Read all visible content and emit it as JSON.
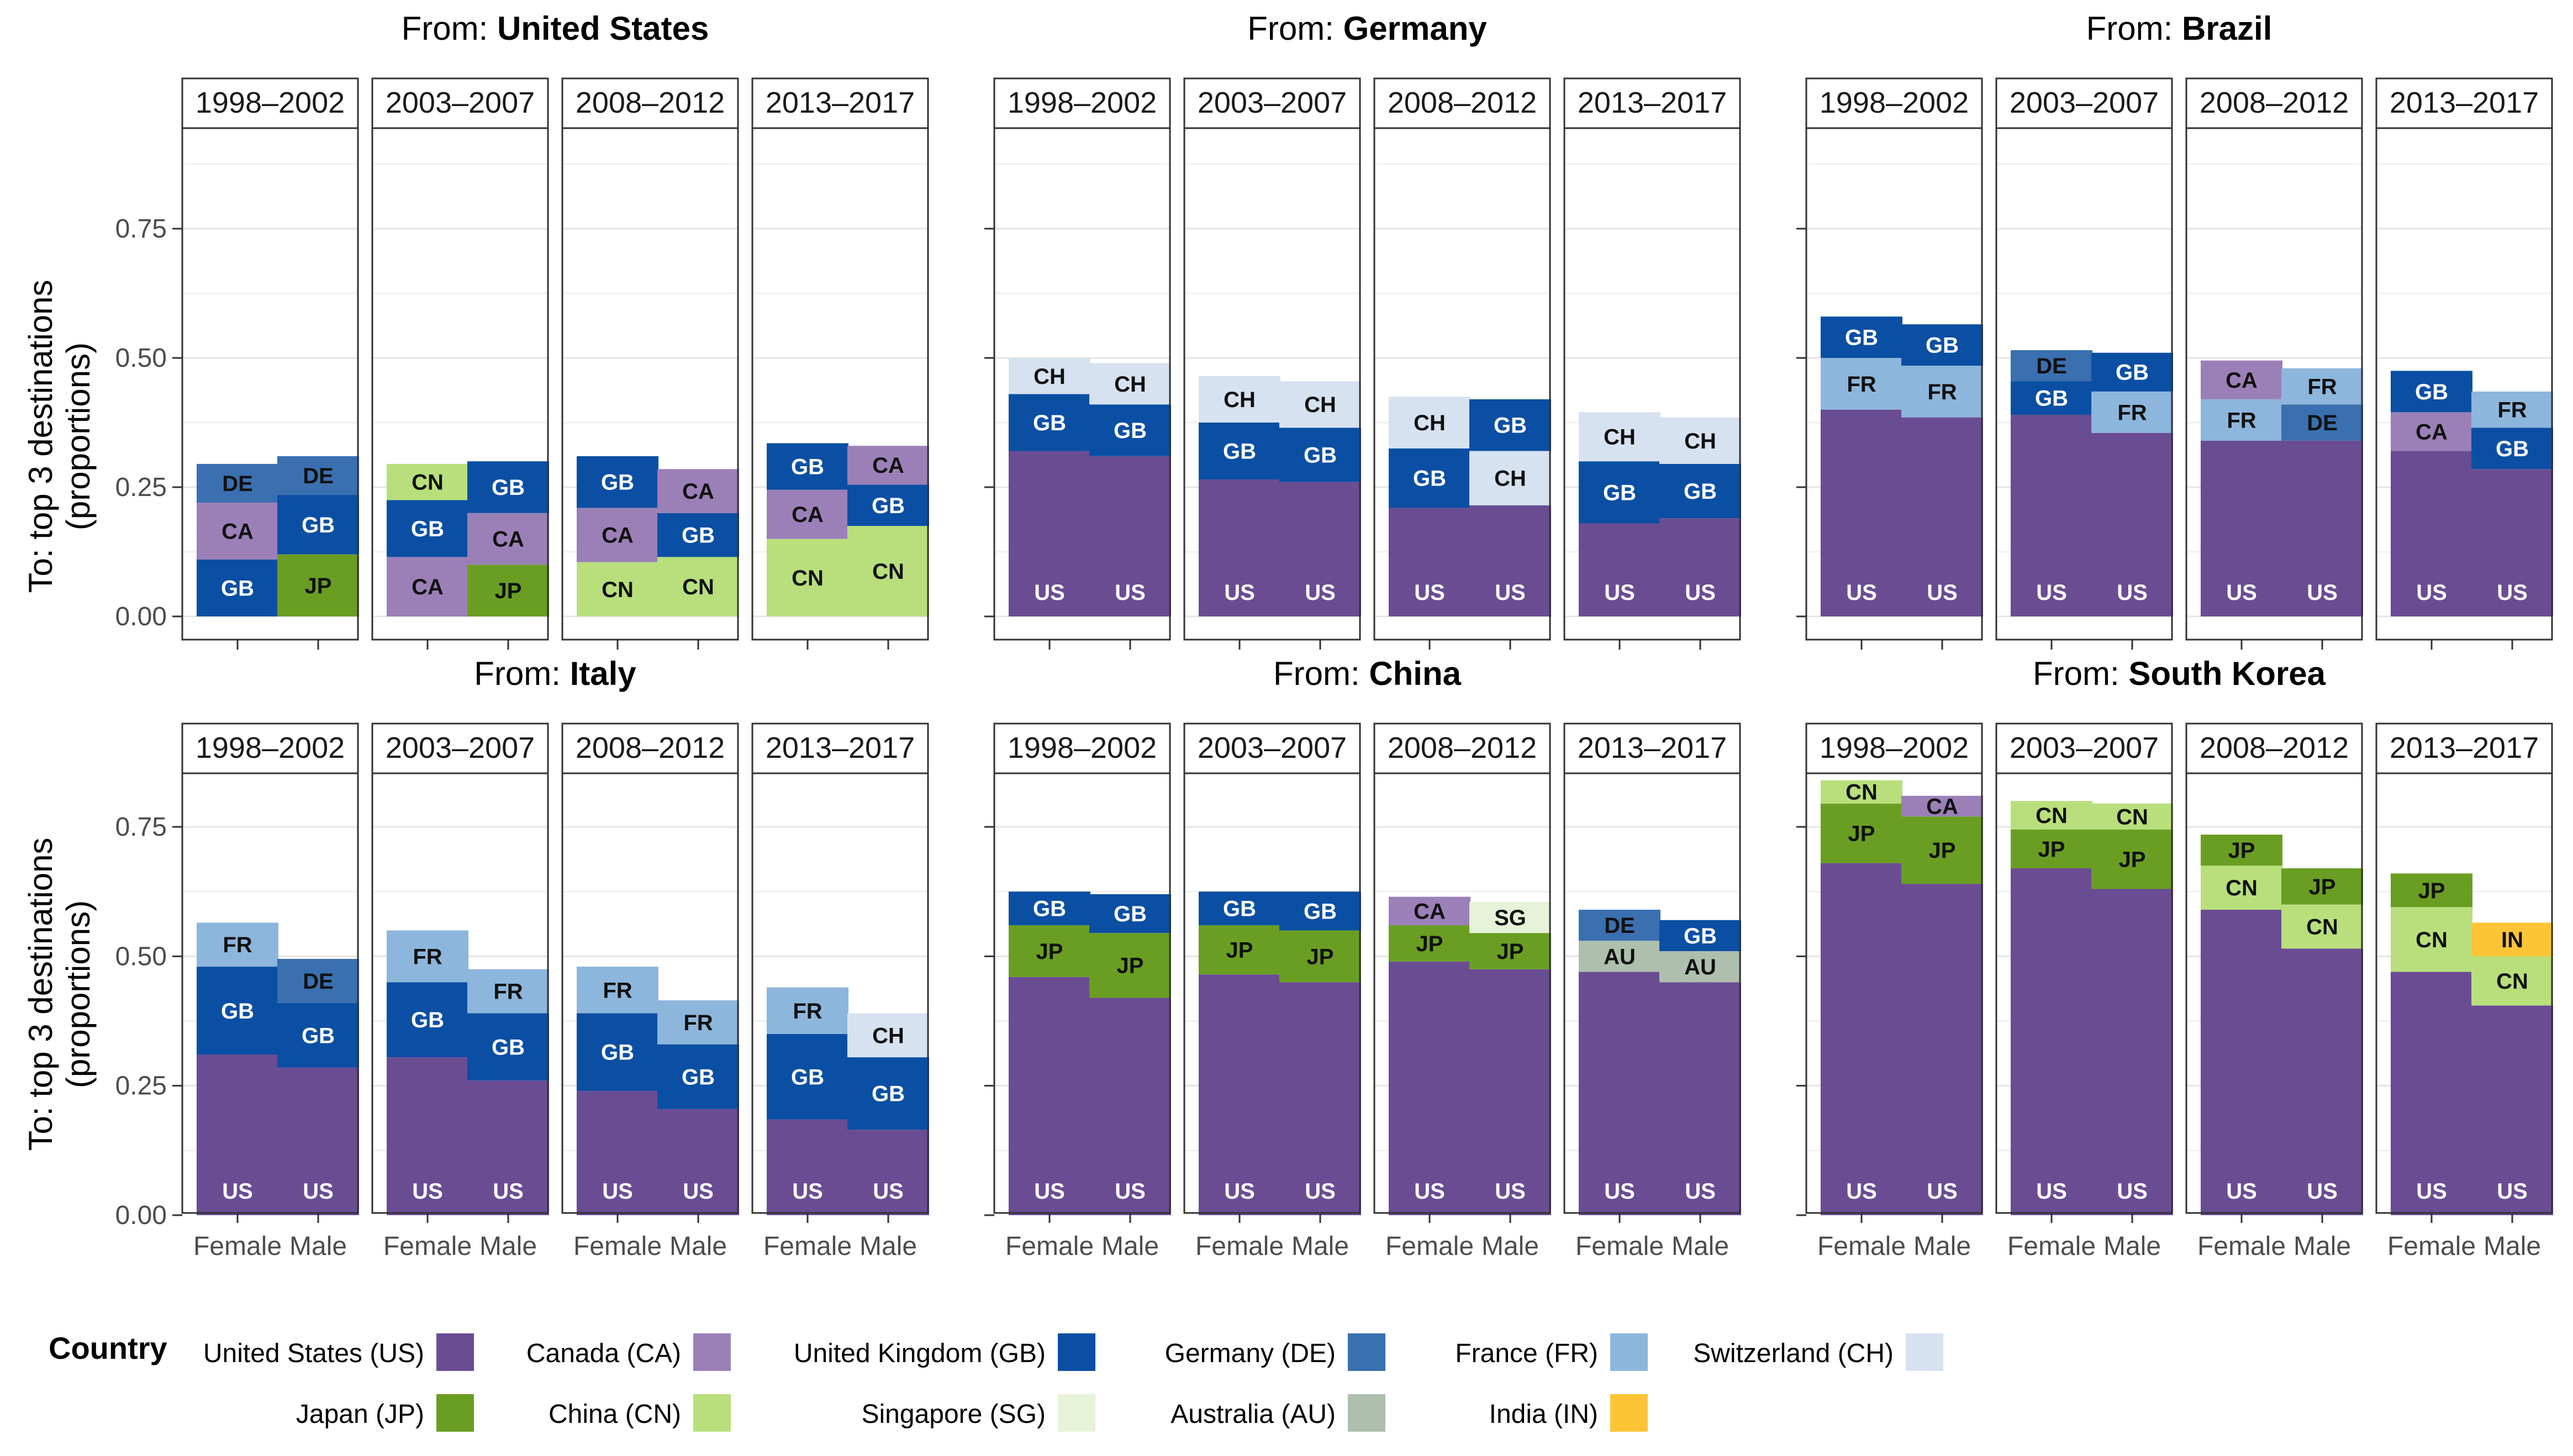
{
  "chart_data": {
    "type": "bar",
    "stacked": true,
    "facet_title_prefix": "From: ",
    "ylabel_line1": "To: top 3 destinations",
    "ylabel_line2": "(proportions)",
    "y_ticks": [
      "0.00",
      "0.25",
      "0.50",
      "0.75"
    ],
    "ylim": [
      0,
      0.95
    ],
    "periods": [
      "1998–2002",
      "2003–2007",
      "2008–2012",
      "2013–2017"
    ],
    "x_categories": [
      "Female",
      "Male"
    ],
    "grid": true,
    "legend_position": "bottom",
    "legend": {
      "title": "Country",
      "items": [
        {
          "code": "US",
          "label": "United States (US)",
          "color": "#6a4c93"
        },
        {
          "code": "CA",
          "label": "Canada (CA)",
          "color": "#9b80b8"
        },
        {
          "code": "GB",
          "label": "United Kingdom (GB)",
          "color": "#0a4fa3"
        },
        {
          "code": "DE",
          "label": "Germany (DE)",
          "color": "#3a6fb0"
        },
        {
          "code": "FR",
          "label": "France (FR)",
          "color": "#8db6dc"
        },
        {
          "code": "CH",
          "label": "Switzerland (CH)",
          "color": "#d7e2f0"
        },
        {
          "code": "JP",
          "label": "Japan (JP)",
          "color": "#6a9e22"
        },
        {
          "code": "CN",
          "label": "China (CN)",
          "color": "#b8df7c"
        },
        {
          "code": "SG",
          "label": "Singapore (SG)",
          "color": "#e6f3d8"
        },
        {
          "code": "AU",
          "label": "Australia (AU)",
          "color": "#aebfae"
        },
        {
          "code": "IN",
          "label": "India (IN)",
          "color": "#fdc536"
        }
      ]
    },
    "dark_label_codes": [
      "CA",
      "DE",
      "CH",
      "FR",
      "CN",
      "SG",
      "AU",
      "IN",
      "JP"
    ],
    "panels": [
      {
        "from": "United States",
        "bars": [
          [
            [
              [
                "GB",
                0.11
              ],
              [
                "CA",
                0.11
              ],
              [
                "DE",
                0.075
              ]
            ],
            [
              [
                "JP",
                0.12
              ],
              [
                "GB",
                0.115
              ],
              [
                "DE",
                0.075
              ]
            ]
          ],
          [
            [
              [
                "CA",
                0.115
              ],
              [
                "GB",
                0.11
              ],
              [
                "CN",
                0.07
              ]
            ],
            [
              [
                "JP",
                0.1
              ],
              [
                "CA",
                0.1
              ],
              [
                "GB",
                0.1
              ]
            ]
          ],
          [
            [
              [
                "CN",
                0.105
              ],
              [
                "CA",
                0.105
              ],
              [
                "GB",
                0.1
              ]
            ],
            [
              [
                "CN",
                0.115
              ],
              [
                "GB",
                0.085
              ],
              [
                "CA",
                0.085
              ]
            ]
          ],
          [
            [
              [
                "CN",
                0.15
              ],
              [
                "CA",
                0.095
              ],
              [
                "GB",
                0.09
              ]
            ],
            [
              [
                "CN",
                0.175
              ],
              [
                "GB",
                0.08
              ],
              [
                "CA",
                0.075
              ]
            ]
          ]
        ]
      },
      {
        "from": "Germany",
        "bars": [
          [
            [
              [
                "US",
                0.32
              ],
              [
                "GB",
                0.11
              ],
              [
                "CH",
                0.07
              ]
            ],
            [
              [
                "US",
                0.31
              ],
              [
                "GB",
                0.1
              ],
              [
                "CH",
                0.08
              ]
            ]
          ],
          [
            [
              [
                "US",
                0.265
              ],
              [
                "GB",
                0.11
              ],
              [
                "CH",
                0.09
              ]
            ],
            [
              [
                "US",
                0.26
              ],
              [
                "GB",
                0.105
              ],
              [
                "CH",
                0.09
              ]
            ]
          ],
          [
            [
              [
                "US",
                0.21
              ],
              [
                "GB",
                0.115
              ],
              [
                "CH",
                0.1
              ]
            ],
            [
              [
                "US",
                0.215
              ],
              [
                "CH",
                0.105
              ],
              [
                "GB",
                0.1
              ]
            ]
          ],
          [
            [
              [
                "US",
                0.18
              ],
              [
                "GB",
                0.12
              ],
              [
                "CH",
                0.095
              ]
            ],
            [
              [
                "US",
                0.19
              ],
              [
                "GB",
                0.105
              ],
              [
                "CH",
                0.09
              ]
            ]
          ]
        ]
      },
      {
        "from": "Brazil",
        "bars": [
          [
            [
              [
                "US",
                0.4
              ],
              [
                "FR",
                0.1
              ],
              [
                "GB",
                0.08
              ]
            ],
            [
              [
                "US",
                0.385
              ],
              [
                "FR",
                0.1
              ],
              [
                "GB",
                0.08
              ]
            ]
          ],
          [
            [
              [
                "US",
                0.39
              ],
              [
                "GB",
                0.065
              ],
              [
                "DE",
                0.06
              ]
            ],
            [
              [
                "US",
                0.355
              ],
              [
                "FR",
                0.08
              ],
              [
                "GB",
                0.075
              ]
            ]
          ],
          [
            [
              [
                "US",
                0.34
              ],
              [
                "FR",
                0.08
              ],
              [
                "CA",
                0.075
              ]
            ],
            [
              [
                "US",
                0.34
              ],
              [
                "DE",
                0.07
              ],
              [
                "FR",
                0.07
              ]
            ]
          ],
          [
            [
              [
                "US",
                0.32
              ],
              [
                "CA",
                0.075
              ],
              [
                "GB",
                0.08
              ]
            ],
            [
              [
                "US",
                0.285
              ],
              [
                "GB",
                0.08
              ],
              [
                "FR",
                0.07
              ]
            ]
          ]
        ]
      },
      {
        "from": "Italy",
        "bars": [
          [
            [
              [
                "US",
                0.31
              ],
              [
                "GB",
                0.17
              ],
              [
                "FR",
                0.085
              ]
            ],
            [
              [
                "US",
                0.285
              ],
              [
                "GB",
                0.125
              ],
              [
                "DE",
                0.085
              ]
            ]
          ],
          [
            [
              [
                "US",
                0.305
              ],
              [
                "GB",
                0.145
              ],
              [
                "FR",
                0.1
              ]
            ],
            [
              [
                "US",
                0.26
              ],
              [
                "GB",
                0.13
              ],
              [
                "FR",
                0.085
              ]
            ]
          ],
          [
            [
              [
                "US",
                0.24
              ],
              [
                "GB",
                0.15
              ],
              [
                "FR",
                0.09
              ]
            ],
            [
              [
                "US",
                0.205
              ],
              [
                "GB",
                0.125
              ],
              [
                "FR",
                0.085
              ]
            ]
          ],
          [
            [
              [
                "US",
                0.185
              ],
              [
                "GB",
                0.165
              ],
              [
                "FR",
                0.09
              ]
            ],
            [
              [
                "US",
                0.165
              ],
              [
                "GB",
                0.14
              ],
              [
                "CH",
                0.085
              ]
            ]
          ]
        ]
      },
      {
        "from": "China",
        "bars": [
          [
            [
              [
                "US",
                0.46
              ],
              [
                "JP",
                0.1
              ],
              [
                "GB",
                0.065
              ]
            ],
            [
              [
                "US",
                0.42
              ],
              [
                "JP",
                0.125
              ],
              [
                "GB",
                0.075
              ]
            ]
          ],
          [
            [
              [
                "US",
                0.465
              ],
              [
                "JP",
                0.095
              ],
              [
                "GB",
                0.065
              ]
            ],
            [
              [
                "US",
                0.45
              ],
              [
                "JP",
                0.1
              ],
              [
                "GB",
                0.075
              ]
            ]
          ],
          [
            [
              [
                "US",
                0.49
              ],
              [
                "JP",
                0.07
              ],
              [
                "CA",
                0.055
              ]
            ],
            [
              [
                "US",
                0.475
              ],
              [
                "JP",
                0.07
              ],
              [
                "SG",
                0.06
              ]
            ]
          ],
          [
            [
              [
                "US",
                0.47
              ],
              [
                "AU",
                0.06
              ],
              [
                "DE",
                0.06
              ]
            ],
            [
              [
                "US",
                0.45
              ],
              [
                "AU",
                0.06
              ],
              [
                "GB",
                0.06
              ]
            ]
          ]
        ]
      },
      {
        "from": "South Korea",
        "bars": [
          [
            [
              [
                "US",
                0.68
              ],
              [
                "JP",
                0.115
              ],
              [
                "CN",
                0.045
              ]
            ],
            [
              [
                "US",
                0.64
              ],
              [
                "JP",
                0.13
              ],
              [
                "CA",
                0.04
              ]
            ]
          ],
          [
            [
              [
                "US",
                0.67
              ],
              [
                "JP",
                0.075
              ],
              [
                "CN",
                0.055
              ]
            ],
            [
              [
                "US",
                0.63
              ],
              [
                "JP",
                0.115
              ],
              [
                "CN",
                0.05
              ]
            ]
          ],
          [
            [
              [
                "US",
                0.59
              ],
              [
                "CN",
                0.085
              ],
              [
                "JP",
                0.06
              ]
            ],
            [
              [
                "US",
                0.515
              ],
              [
                "CN",
                0.085
              ],
              [
                "JP",
                0.07
              ]
            ]
          ],
          [
            [
              [
                "US",
                0.47
              ],
              [
                "CN",
                0.125
              ],
              [
                "JP",
                0.065
              ]
            ],
            [
              [
                "US",
                0.405
              ],
              [
                "CN",
                0.095
              ],
              [
                "IN",
                0.065
              ]
            ]
          ]
        ]
      }
    ]
  }
}
